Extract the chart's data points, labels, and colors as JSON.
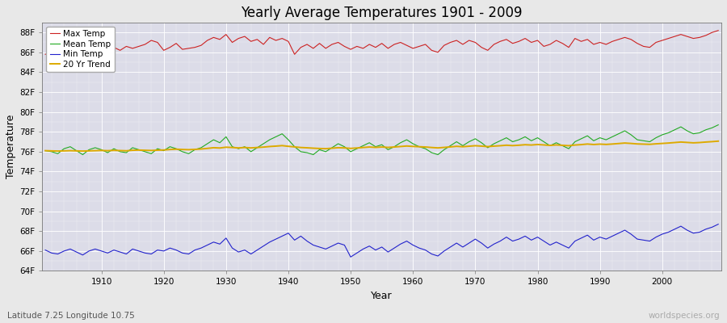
{
  "title": "Yearly Average Temperatures 1901 - 2009",
  "xlabel": "Year",
  "ylabel": "Temperature",
  "subtitle": "Latitude 7.25 Longitude 10.75",
  "watermark": "worldspecies.org",
  "years": [
    1901,
    1902,
    1903,
    1904,
    1905,
    1906,
    1907,
    1908,
    1909,
    1910,
    1911,
    1912,
    1913,
    1914,
    1915,
    1916,
    1917,
    1918,
    1919,
    1920,
    1921,
    1922,
    1923,
    1924,
    1925,
    1926,
    1927,
    1928,
    1929,
    1930,
    1931,
    1932,
    1933,
    1934,
    1935,
    1936,
    1937,
    1938,
    1939,
    1940,
    1941,
    1942,
    1943,
    1944,
    1945,
    1946,
    1947,
    1948,
    1949,
    1950,
    1951,
    1952,
    1953,
    1954,
    1955,
    1956,
    1957,
    1958,
    1959,
    1960,
    1961,
    1962,
    1963,
    1964,
    1965,
    1966,
    1967,
    1968,
    1969,
    1970,
    1971,
    1972,
    1973,
    1974,
    1975,
    1976,
    1977,
    1978,
    1979,
    1980,
    1981,
    1982,
    1983,
    1984,
    1985,
    1986,
    1987,
    1988,
    1989,
    1990,
    1991,
    1992,
    1993,
    1994,
    1995,
    1996,
    1997,
    1998,
    1999,
    2000,
    2001,
    2002,
    2003,
    2004,
    2005,
    2006,
    2007,
    2008,
    2009
  ],
  "max_temp": [
    85.8,
    86.0,
    85.9,
    86.2,
    86.8,
    86.5,
    86.3,
    86.2,
    86.7,
    86.3,
    86.4,
    86.5,
    86.2,
    86.6,
    86.4,
    86.6,
    86.8,
    87.2,
    87.0,
    86.2,
    86.5,
    86.9,
    86.3,
    86.4,
    86.5,
    86.7,
    87.2,
    87.5,
    87.3,
    87.8,
    87.0,
    87.4,
    87.6,
    87.1,
    87.3,
    86.8,
    87.5,
    87.2,
    87.4,
    87.1,
    85.8,
    86.5,
    86.8,
    86.4,
    86.9,
    86.4,
    86.8,
    87.0,
    86.6,
    86.3,
    86.6,
    86.4,
    86.8,
    86.5,
    86.9,
    86.4,
    86.8,
    87.0,
    86.7,
    86.4,
    86.6,
    86.8,
    86.2,
    86.0,
    86.7,
    87.0,
    87.2,
    86.8,
    87.2,
    87.0,
    86.5,
    86.2,
    86.8,
    87.1,
    87.3,
    86.9,
    87.1,
    87.4,
    87.0,
    87.2,
    86.6,
    86.8,
    87.2,
    86.9,
    86.5,
    87.4,
    87.1,
    87.3,
    86.8,
    87.0,
    86.8,
    87.1,
    87.3,
    87.5,
    87.3,
    86.9,
    86.6,
    86.5,
    87.0,
    87.2,
    87.4,
    87.6,
    87.8,
    87.6,
    87.4,
    87.5,
    87.7,
    88.0,
    88.2
  ],
  "mean_temp": [
    76.1,
    76.0,
    75.8,
    76.3,
    76.5,
    76.1,
    75.7,
    76.2,
    76.4,
    76.2,
    75.9,
    76.3,
    76.0,
    75.9,
    76.4,
    76.2,
    76.0,
    75.8,
    76.3,
    76.1,
    76.5,
    76.3,
    76.0,
    75.8,
    76.2,
    76.4,
    76.8,
    77.2,
    76.9,
    77.5,
    76.5,
    76.3,
    76.5,
    76.0,
    76.4,
    76.8,
    77.2,
    77.5,
    77.8,
    77.2,
    76.5,
    76.0,
    75.9,
    75.7,
    76.2,
    76.0,
    76.4,
    76.8,
    76.5,
    76.0,
    76.3,
    76.6,
    76.9,
    76.5,
    76.7,
    76.2,
    76.5,
    76.9,
    77.2,
    76.8,
    76.5,
    76.3,
    75.9,
    75.7,
    76.2,
    76.6,
    77.0,
    76.6,
    77.0,
    77.3,
    76.9,
    76.4,
    76.8,
    77.1,
    77.4,
    77.0,
    77.2,
    77.5,
    77.1,
    77.4,
    77.0,
    76.6,
    76.9,
    76.6,
    76.3,
    77.0,
    77.3,
    77.6,
    77.1,
    77.4,
    77.2,
    77.5,
    77.8,
    78.1,
    77.7,
    77.2,
    77.1,
    77.0,
    77.4,
    77.7,
    77.9,
    78.2,
    78.5,
    78.1,
    77.8,
    77.9,
    78.2,
    78.4,
    78.7
  ],
  "min_temp": [
    66.1,
    65.8,
    65.7,
    66.0,
    66.2,
    65.9,
    65.6,
    66.0,
    66.2,
    66.0,
    65.8,
    66.1,
    65.9,
    65.7,
    66.2,
    66.0,
    65.8,
    65.7,
    66.1,
    66.0,
    66.3,
    66.1,
    65.8,
    65.7,
    66.1,
    66.3,
    66.6,
    66.9,
    66.7,
    67.3,
    66.3,
    65.9,
    66.1,
    65.7,
    66.1,
    66.5,
    66.9,
    67.2,
    67.5,
    67.8,
    67.1,
    67.5,
    67.0,
    66.6,
    66.4,
    66.2,
    66.5,
    66.8,
    66.6,
    65.4,
    65.8,
    66.2,
    66.5,
    66.1,
    66.4,
    65.9,
    66.3,
    66.7,
    67.0,
    66.6,
    66.3,
    66.1,
    65.7,
    65.5,
    66.0,
    66.4,
    66.8,
    66.4,
    66.8,
    67.2,
    66.8,
    66.3,
    66.7,
    67.0,
    67.4,
    67.0,
    67.2,
    67.5,
    67.1,
    67.4,
    67.0,
    66.6,
    66.9,
    66.6,
    66.3,
    67.0,
    67.3,
    67.6,
    67.1,
    67.4,
    67.2,
    67.5,
    67.8,
    68.1,
    67.7,
    67.2,
    67.1,
    67.0,
    67.4,
    67.7,
    67.9,
    68.2,
    68.5,
    68.1,
    67.8,
    67.9,
    68.2,
    68.4,
    68.7
  ],
  "trend_20yr": [
    76.1,
    76.08,
    76.06,
    76.08,
    76.1,
    76.08,
    76.06,
    76.08,
    76.1,
    76.12,
    76.1,
    76.13,
    76.11,
    76.09,
    76.14,
    76.16,
    76.14,
    76.12,
    76.15,
    76.17,
    76.22,
    76.25,
    76.22,
    76.2,
    76.23,
    76.27,
    76.33,
    76.4,
    76.37,
    76.45,
    76.42,
    76.38,
    76.42,
    76.38,
    76.42,
    76.46,
    76.52,
    76.56,
    76.61,
    76.54,
    76.48,
    76.42,
    76.39,
    76.35,
    76.32,
    76.3,
    76.35,
    76.4,
    76.38,
    76.33,
    76.37,
    76.42,
    76.47,
    76.43,
    76.47,
    76.43,
    76.47,
    76.52,
    76.57,
    76.53,
    76.5,
    76.47,
    76.42,
    76.38,
    76.43,
    76.48,
    76.54,
    76.5,
    76.55,
    76.6,
    76.56,
    76.51,
    76.56,
    76.6,
    76.65,
    76.61,
    76.65,
    76.7,
    76.67,
    76.72,
    76.68,
    76.63,
    76.68,
    76.64,
    76.6,
    76.67,
    76.71,
    76.77,
    76.72,
    76.76,
    76.73,
    76.77,
    76.82,
    76.87,
    76.83,
    76.78,
    76.76,
    76.74,
    76.79,
    76.83,
    76.87,
    76.92,
    76.97,
    76.93,
    76.89,
    76.92,
    76.97,
    77.01,
    77.06
  ],
  "max_color": "#cc2222",
  "mean_color": "#22aa22",
  "min_color": "#2222cc",
  "trend_color": "#ddaa00",
  "bg_color": "#e8e8e8",
  "plot_bg": "#dcdce8",
  "ylim": [
    64,
    89
  ],
  "yticks": [
    64,
    66,
    68,
    70,
    72,
    74,
    76,
    78,
    80,
    82,
    84,
    86,
    88
  ],
  "xticks": [
    1910,
    1920,
    1930,
    1940,
    1950,
    1960,
    1970,
    1980,
    1990,
    2000
  ],
  "line_width": 0.8
}
